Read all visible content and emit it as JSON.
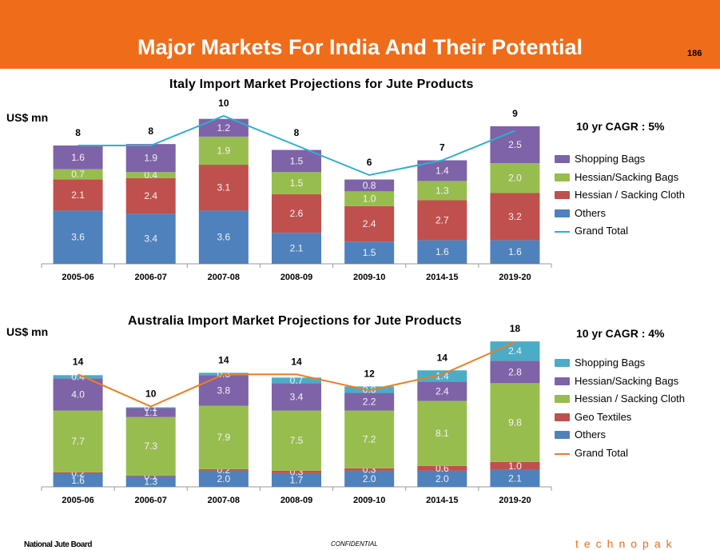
{
  "header": {
    "title": "Major Markets For India And Their Potential",
    "page_number": "186"
  },
  "footer": {
    "left": "National Jute Board",
    "center": "CONFIDENTIAL",
    "right": "technopak"
  },
  "colors": {
    "header_bg": "#ef6c1a",
    "shopping_bags": "#7e63a8",
    "hessian_sacking_bags": "#98bd4f",
    "hessian_sacking_cloth": "#c0504d",
    "others": "#4f81bd",
    "geo_textiles": "#c0504d",
    "australia_shopping_bags": "#4bacc6",
    "italy_total_line": "#2eafd1",
    "australia_total_line": "#ef7d23"
  },
  "italy": {
    "title": "Italy Import Market Projections for Jute Products",
    "unit": "US$ mn",
    "cagr": "10 yr CAGR : 5%"
  },
  "australia": {
    "title": "Australia Import Market Projections for Jute Products",
    "unit": "US$ mn",
    "cagr": "10 yr CAGR : 4%"
  },
  "chart_data": [
    {
      "type": "bar",
      "stacked": true,
      "title": "Italy Import Market Projections for Jute Products",
      "ylabel": "US$ mn",
      "categories": [
        "2005-06",
        "2006-07",
        "2007-08",
        "2008-09",
        "2009-10",
        "2014-15",
        "2019-20"
      ],
      "series": [
        {
          "name": "Others",
          "values": [
            3.6,
            3.4,
            3.6,
            2.1,
            1.5,
            1.6,
            1.6
          ]
        },
        {
          "name": "Hessian / Sacking Cloth",
          "values": [
            2.1,
            2.4,
            3.1,
            2.6,
            2.4,
            2.7,
            3.2
          ]
        },
        {
          "name": "Hessian/Sacking Bags",
          "values": [
            0.7,
            0.4,
            1.9,
            1.5,
            1.0,
            1.3,
            2.0
          ]
        },
        {
          "name": "Shopping Bags",
          "values": [
            1.6,
            1.9,
            1.2,
            1.5,
            0.8,
            1.4,
            2.5
          ]
        }
      ],
      "line": {
        "name": "Grand Total",
        "values": [
          8,
          8,
          10,
          8,
          6,
          7,
          9
        ]
      },
      "legend_order": [
        "Shopping Bags",
        "Hessian/Sacking Bags",
        "Hessian / Sacking Cloth",
        "Others",
        "Grand Total"
      ],
      "legend_position": "right",
      "grid": false
    },
    {
      "type": "bar",
      "stacked": true,
      "title": "Australia Import Market Projections for Jute Products",
      "ylabel": "US$ mn",
      "categories": [
        "2005-06",
        "2006-07",
        "2007-08",
        "2008-09",
        "2009-10",
        "2014-15",
        "2019-20"
      ],
      "series": [
        {
          "name": "Others",
          "values": [
            1.6,
            1.3,
            2.0,
            1.7,
            2.0,
            2.0,
            2.1
          ]
        },
        {
          "name": "Geo Textiles",
          "values": [
            0.2,
            0.1,
            0.2,
            0.3,
            0.3,
            0.6,
            1.0
          ]
        },
        {
          "name": "Hessian / Sacking Cloth",
          "values": [
            7.7,
            7.3,
            7.9,
            7.5,
            7.2,
            8.1,
            9.8
          ]
        },
        {
          "name": "Hessian/Sacking Bags",
          "values": [
            4.0,
            1.1,
            3.8,
            3.4,
            2.2,
            2.4,
            2.8
          ]
        },
        {
          "name": "Shopping Bags",
          "values": [
            0.4,
            0.1,
            0.3,
            0.7,
            0.8,
            1.4,
            2.4
          ]
        }
      ],
      "line": {
        "name": "Grand Total",
        "values": [
          14,
          10,
          14,
          14,
          12,
          14,
          18
        ]
      },
      "legend_order": [
        "Shopping Bags",
        "Hessian/Sacking Bags",
        "Hessian / Sacking Cloth",
        "Geo Textiles",
        "Others",
        "Grand Total"
      ],
      "legend_position": "right",
      "grid": false
    }
  ]
}
